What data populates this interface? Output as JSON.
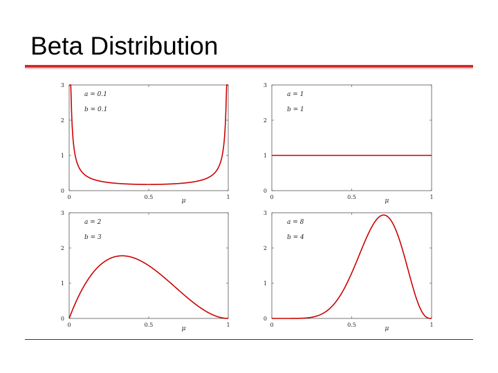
{
  "slide": {
    "title": "Beta Distribution"
  },
  "chart_data": [
    {
      "type": "line",
      "a": 0.1,
      "b": 0.1,
      "annotations": [
        "a = 0.1",
        "b = 0.1"
      ],
      "xlabel": "μ",
      "xlim": [
        0,
        1
      ],
      "ylim": [
        0,
        3
      ],
      "xticks": [
        "0",
        "0.5",
        "1"
      ],
      "yticks": [
        "0",
        "1",
        "2",
        "3"
      ],
      "color": "#cc0000"
    },
    {
      "type": "line",
      "a": 1,
      "b": 1,
      "annotations": [
        "a = 1",
        "b = 1"
      ],
      "xlabel": "μ",
      "xlim": [
        0,
        1
      ],
      "ylim": [
        0,
        3
      ],
      "xticks": [
        "0",
        "0.5",
        "1"
      ],
      "yticks": [
        "0",
        "1",
        "2",
        "3"
      ],
      "color": "#cc0000"
    },
    {
      "type": "line",
      "a": 2,
      "b": 3,
      "annotations": [
        "a = 2",
        "b = 3"
      ],
      "xlabel": "μ",
      "xlim": [
        0,
        1
      ],
      "ylim": [
        0,
        3
      ],
      "xticks": [
        "0",
        "0.5",
        "1"
      ],
      "yticks": [
        "0",
        "1",
        "2",
        "3"
      ],
      "color": "#cc0000"
    },
    {
      "type": "line",
      "a": 8,
      "b": 4,
      "annotations": [
        "a = 8",
        "b = 4"
      ],
      "xlabel": "μ",
      "xlim": [
        0,
        1
      ],
      "ylim": [
        0,
        3
      ],
      "xticks": [
        "0",
        "0.5",
        "1"
      ],
      "yticks": [
        "0",
        "1",
        "2",
        "3"
      ],
      "color": "#cc0000"
    }
  ]
}
